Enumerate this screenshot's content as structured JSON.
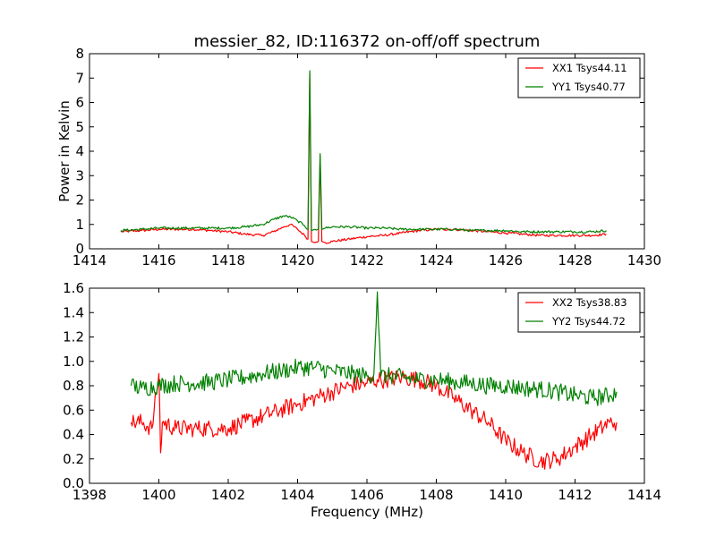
{
  "chart_data": [
    {
      "type": "line",
      "title": "messier_82, ID:116372 on-off/off spectrum",
      "xlabel": "",
      "ylabel": "Power in Kelvin",
      "xlim": [
        1414,
        1430
      ],
      "ylim": [
        0,
        8
      ],
      "xticks": [
        1414,
        1416,
        1418,
        1420,
        1422,
        1424,
        1426,
        1428,
        1430
      ],
      "yticks": [
        0,
        1,
        2,
        3,
        4,
        5,
        6,
        7,
        8
      ],
      "legend_position": "top-right",
      "series": [
        {
          "name": "XX1 Tsys44.11",
          "color": "#ff0000",
          "x": [
            1414.9,
            1415.5,
            1416.0,
            1416.5,
            1417.0,
            1417.5,
            1418.0,
            1418.5,
            1419.0,
            1419.3,
            1419.6,
            1419.8,
            1420.0,
            1420.2,
            1420.3,
            1420.35,
            1420.4,
            1420.5,
            1420.6,
            1420.65,
            1420.7,
            1420.8,
            1421.0,
            1421.5,
            1422.0,
            1422.5,
            1423.0,
            1423.5,
            1424.0,
            1424.5,
            1425.0,
            1425.5,
            1426.0,
            1426.5,
            1427.0,
            1427.5,
            1428.0,
            1428.5,
            1428.9
          ],
          "y": [
            0.7,
            0.75,
            0.8,
            0.8,
            0.8,
            0.75,
            0.7,
            0.6,
            0.55,
            0.7,
            0.9,
            1.0,
            0.8,
            0.55,
            0.4,
            7.2,
            0.3,
            0.25,
            0.3,
            3.8,
            0.3,
            0.25,
            0.3,
            0.4,
            0.5,
            0.55,
            0.65,
            0.75,
            0.8,
            0.8,
            0.75,
            0.7,
            0.65,
            0.6,
            0.55,
            0.55,
            0.55,
            0.55,
            0.6
          ]
        },
        {
          "name": "YY1 Tsys40.77",
          "color": "#008000",
          "x": [
            1414.9,
            1415.5,
            1416.0,
            1416.5,
            1417.0,
            1417.5,
            1418.0,
            1418.5,
            1419.0,
            1419.3,
            1419.6,
            1419.8,
            1420.0,
            1420.2,
            1420.3,
            1420.35,
            1420.4,
            1420.5,
            1420.6,
            1420.65,
            1420.7,
            1420.8,
            1421.0,
            1421.5,
            1422.0,
            1422.5,
            1423.0,
            1423.5,
            1424.0,
            1424.5,
            1425.0,
            1425.5,
            1426.0,
            1426.5,
            1427.0,
            1427.5,
            1428.0,
            1428.5,
            1428.9
          ],
          "y": [
            0.75,
            0.8,
            0.85,
            0.85,
            0.85,
            0.85,
            0.85,
            0.9,
            1.0,
            1.2,
            1.35,
            1.3,
            1.15,
            0.95,
            0.8,
            7.3,
            0.75,
            0.8,
            0.8,
            3.9,
            0.8,
            0.85,
            0.9,
            0.9,
            0.85,
            0.85,
            0.8,
            0.8,
            0.8,
            0.8,
            0.75,
            0.75,
            0.75,
            0.7,
            0.7,
            0.7,
            0.7,
            0.7,
            0.75
          ]
        }
      ]
    },
    {
      "type": "line",
      "title": "",
      "xlabel": "Frequency (MHz)",
      "ylabel": "",
      "xlim": [
        1398,
        1414
      ],
      "ylim": [
        0.0,
        1.6
      ],
      "xticks": [
        1398,
        1400,
        1402,
        1404,
        1406,
        1408,
        1410,
        1412,
        1414
      ],
      "yticks": [
        0.0,
        0.2,
        0.4,
        0.6,
        0.8,
        1.0,
        1.2,
        1.4,
        1.6
      ],
      "legend_position": "top-right",
      "series": [
        {
          "name": "XX2 Tsys38.83",
          "color": "#ff0000",
          "x": [
            1399.2,
            1399.5,
            1399.8,
            1400.0,
            1400.05,
            1400.1,
            1400.5,
            1401.0,
            1401.5,
            1402.0,
            1402.5,
            1403.0,
            1403.5,
            1404.0,
            1404.5,
            1405.0,
            1405.5,
            1406.0,
            1406.3,
            1406.5,
            1407.0,
            1407.5,
            1408.0,
            1408.5,
            1409.0,
            1409.5,
            1410.0,
            1410.5,
            1411.0,
            1411.5,
            1412.0,
            1412.5,
            1413.0,
            1413.2
          ],
          "y": [
            0.5,
            0.5,
            0.45,
            0.9,
            0.25,
            0.5,
            0.45,
            0.45,
            0.45,
            0.45,
            0.5,
            0.55,
            0.6,
            0.65,
            0.7,
            0.75,
            0.8,
            0.82,
            0.85,
            0.85,
            0.87,
            0.85,
            0.8,
            0.7,
            0.6,
            0.5,
            0.35,
            0.25,
            0.18,
            0.2,
            0.3,
            0.4,
            0.5,
            0.5
          ]
        },
        {
          "name": "YY2 Tsys44.72",
          "color": "#008000",
          "x": [
            1399.2,
            1399.5,
            1400.0,
            1400.5,
            1401.0,
            1401.5,
            1402.0,
            1402.5,
            1403.0,
            1403.5,
            1404.0,
            1404.5,
            1405.0,
            1405.5,
            1406.0,
            1406.2,
            1406.3,
            1406.4,
            1406.6,
            1407.0,
            1407.5,
            1408.0,
            1408.5,
            1409.0,
            1409.5,
            1410.0,
            1410.5,
            1411.0,
            1411.5,
            1412.0,
            1412.5,
            1413.0,
            1413.2
          ],
          "y": [
            0.8,
            0.78,
            0.8,
            0.82,
            0.82,
            0.83,
            0.85,
            0.87,
            0.9,
            0.92,
            0.95,
            0.95,
            0.92,
            0.9,
            0.88,
            0.9,
            1.57,
            0.88,
            0.88,
            0.87,
            0.85,
            0.85,
            0.83,
            0.82,
            0.8,
            0.8,
            0.78,
            0.77,
            0.75,
            0.72,
            0.7,
            0.72,
            0.75
          ]
        }
      ]
    }
  ]
}
